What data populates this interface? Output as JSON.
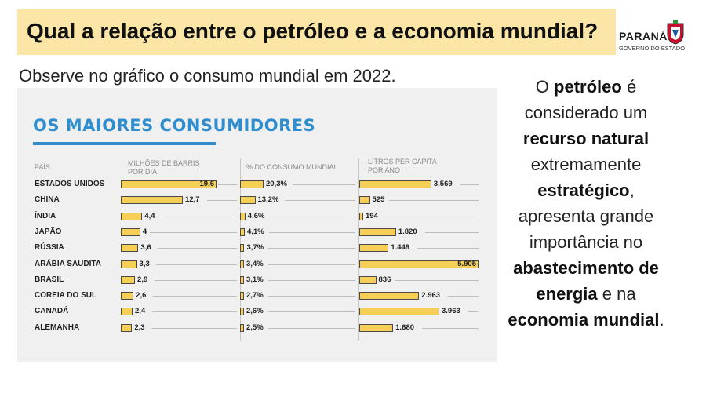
{
  "header": {
    "title": "Qual a relação entre o petróleo e a economia mundial?"
  },
  "logo": {
    "brand": "PARANÁ",
    "gov": "GOVERNO DO ESTADO"
  },
  "intro": "Observe no gráfico o consumo mundial em 2022.",
  "colors": {
    "bar": "#f6cf57",
    "heading": "#2e8ed0",
    "title_bg": "#fbe6a7"
  },
  "side": [
    {
      "t": "O ",
      "b": false
    },
    {
      "t": "petróleo",
      "b": true
    },
    {
      "t": " é considerado um ",
      "b": false
    },
    {
      "t": "recurso natural",
      "b": true
    },
    {
      "t": " extremamente ",
      "b": false
    },
    {
      "t": "estratégico",
      "b": true
    },
    {
      "t": ", apresenta grande importância no ",
      "b": false
    },
    {
      "t": "abastecimento de energia",
      "b": true
    },
    {
      "t": " e na ",
      "b": false
    },
    {
      "t": "economia mundial",
      "b": true
    },
    {
      "t": ".",
      "b": false
    }
  ],
  "chart_data": {
    "type": "bar",
    "title": "OS MAIORES CONSUMIDORES",
    "columns": {
      "country": "PAÍS",
      "barrels": [
        "MILHÕES DE BARRIS",
        "POR DIA"
      ],
      "share": "% DO CONSUMO MUNDIAL",
      "liters": [
        "LITROS PER CAPITA",
        "POR ANO"
      ]
    },
    "categories": [
      "ESTADOS UNIDOS",
      "CHINA",
      "ÍNDIA",
      "JAPÃO",
      "RÚSSIA",
      "ARÁBIA SAUDITA",
      "BRASIL",
      "COREIA DO SUL",
      "CANADÁ",
      "ALEMANHA"
    ],
    "series": [
      {
        "name": "MILHÕES DE BARRIS POR DIA",
        "values": [
          19.6,
          12.7,
          4.4,
          4,
          3.6,
          3.3,
          2.9,
          2.6,
          2.4,
          2.3
        ],
        "labels": [
          "19,6",
          "12,7",
          "4,4",
          "4",
          "3,6",
          "3,3",
          "2,9",
          "2,6",
          "2,4",
          "2,3"
        ]
      },
      {
        "name": "% DO CONSUMO MUNDIAL",
        "values": [
          20.3,
          13.2,
          4.6,
          4.1,
          3.7,
          3.4,
          3.1,
          2.7,
          2.6,
          2.5
        ],
        "labels": [
          "20,3%",
          "13,2%",
          "4,6%",
          "4,1%",
          "3,7%",
          "3,4%",
          "3,1%",
          "2,7%",
          "2,6%",
          "2,5%"
        ]
      },
      {
        "name": "LITROS PER CAPITA POR ANO",
        "values": [
          3569,
          525,
          194,
          1820,
          1449,
          5905,
          836,
          2963,
          3963,
          1680
        ],
        "labels": [
          "3.569",
          "525",
          "194",
          "1.820",
          "1.449",
          "5.905",
          "836",
          "2.963",
          "3.963",
          "1.680"
        ]
      }
    ]
  }
}
